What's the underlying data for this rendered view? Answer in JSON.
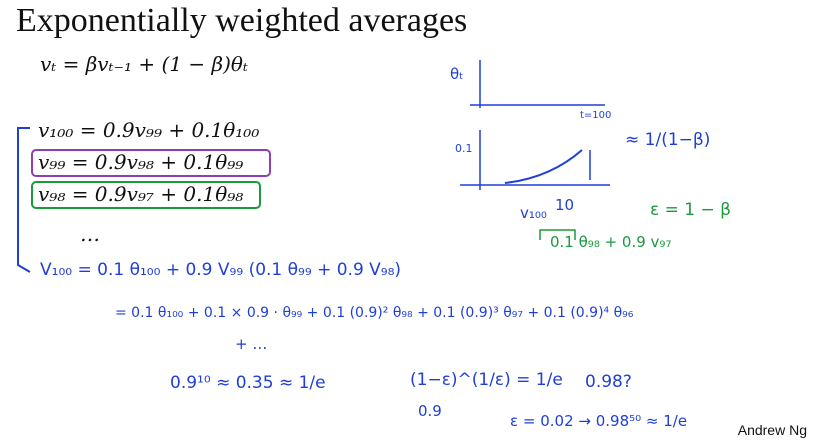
{
  "slide": {
    "title": "Exponentially weighted averages",
    "formula": "vₜ = βvₜ₋₁ + (1 − β)θₜ",
    "equations": [
      "v₁₀₀ = 0.9v₉₉ + 0.1θ₁₀₀",
      "v₉₉ = 0.9v₉₈ + 0.1θ₉₉",
      "v₉₈ = 0.9v₉₇ + 0.1θ₉₈",
      "…"
    ],
    "notes": {
      "plot_theta": "θₜ",
      "plot_t": "t=100",
      "plot_01": "0.1",
      "plot_v": "v₁₀₀",
      "plot_10": "10",
      "approx": "≈ 1/(1−β)",
      "epsilon": "ε = 1 − β",
      "sub": "0.1 θ₉₈ + 0.9 v₉₇",
      "line1": "V₁₀₀ = 0.1 θ₁₀₀ + 0.9 V₉₉ (0.1 θ₉₉ + 0.9 V₉₈)",
      "line2": "= 0.1 θ₁₀₀ + 0.1 × 0.9 · θ₉₉ + 0.1 (0.9)² θ₉₈ + 0.1 (0.9)³ θ₉₇ + 0.1 (0.9)⁴ θ₉₆",
      "line2b": "+ …",
      "rule1": "0.9¹⁰ ≈ 0.35 ≈ 1/e",
      "rule2": "(1−ε)^(1/ε) = 1/e",
      "rule2b": "0.9",
      "rule3": "0.98?",
      "rule4": "ε = 0.02 → 0.98⁵⁰ ≈ 1/e"
    },
    "author": "Andrew Ng"
  }
}
